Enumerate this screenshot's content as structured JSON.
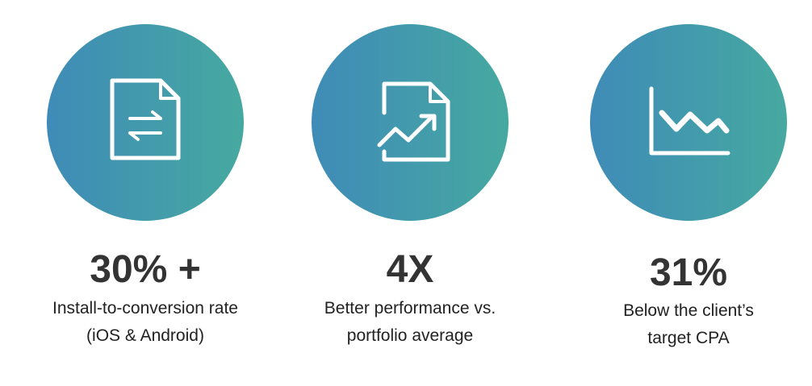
{
  "stats": [
    {
      "value": "30% +",
      "lines": [
        "Install-to-conversion rate",
        "(iOS & Android)"
      ]
    },
    {
      "value": "4X",
      "lines": [
        "Better performance vs.",
        "portfolio average"
      ]
    },
    {
      "value": "31%",
      "lines": [
        "Below the client’s",
        "target CPA"
      ]
    }
  ]
}
